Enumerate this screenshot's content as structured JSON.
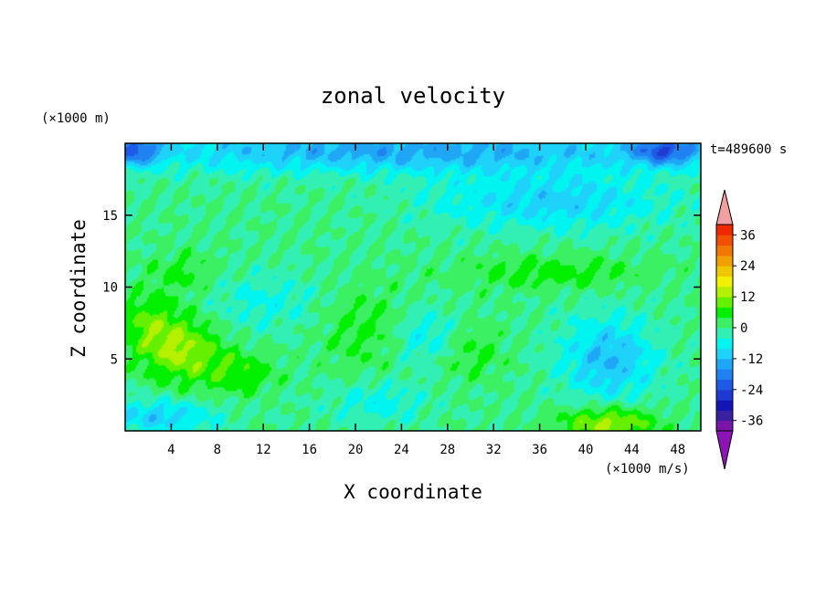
{
  "chart_data": {
    "type": "heatmap",
    "title": "zonal velocity",
    "xlabel": "X coordinate",
    "ylabel": "Z coordinate",
    "y_unit": "(×1000 m)",
    "x_unit": "(×1000 m/s)",
    "time_label": "t=489600 s",
    "xlim": [
      0,
      50
    ],
    "ylim": [
      0,
      20
    ],
    "x_ticks": [
      4,
      8,
      12,
      16,
      20,
      24,
      28,
      32,
      36,
      40,
      44,
      48
    ],
    "y_ticks": [
      5,
      10,
      15
    ],
    "colorbar": {
      "ticks": [
        36,
        24,
        12,
        0,
        -12,
        -24,
        -36
      ],
      "levels": [
        -40,
        -36,
        -32,
        -28,
        -24,
        -20,
        -16,
        -12,
        -8,
        -4,
        0,
        4,
        8,
        12,
        16,
        20,
        24,
        28,
        32,
        36,
        40
      ],
      "colors": [
        "#7b14a8",
        "#3a1fa0",
        "#1414b4",
        "#1f3ad2",
        "#1f5ae6",
        "#1f82f0",
        "#1fa6f5",
        "#1fd2fa",
        "#00f5f0",
        "#32f0b4",
        "#3cf064",
        "#00f000",
        "#64f000",
        "#b4f000",
        "#f0f000",
        "#f0c800",
        "#f0a000",
        "#f07800",
        "#f05000",
        "#f02800"
      ],
      "under_color": "#8c14b4",
      "over_color": "#f0a0a0"
    },
    "features": [
      {
        "x": 5,
        "z": 5.5,
        "sx": 3.5,
        "sz": 2.2,
        "value": 12
      },
      {
        "x": 2,
        "z": 7.5,
        "sx": 3,
        "sz": 2,
        "value": 8
      },
      {
        "x": 10,
        "z": 4,
        "sx": 3,
        "sz": 1.5,
        "value": 7
      },
      {
        "x": 42,
        "z": 5,
        "sx": 4,
        "sz": 3,
        "value": -12
      },
      {
        "x": 42,
        "z": 0.5,
        "sx": 4,
        "sz": 1.2,
        "value": 14
      },
      {
        "x": 26,
        "z": 6.5,
        "sx": 3,
        "sz": 2,
        "value": -7
      },
      {
        "x": 30,
        "z": 5.5,
        "sx": 3,
        "sz": 2,
        "value": 5
      },
      {
        "x": 21,
        "z": 7,
        "sx": 4,
        "sz": 3,
        "value": 5
      },
      {
        "x": 12,
        "z": 9,
        "sx": 5,
        "sz": 2,
        "value": -5
      },
      {
        "x": 3,
        "z": 1,
        "sx": 5,
        "sz": 1.2,
        "value": -10
      },
      {
        "x": 22,
        "z": 2,
        "sx": 4,
        "sz": 1.5,
        "value": -6
      },
      {
        "x": 37,
        "z": 11,
        "sx": 8,
        "sz": 1.2,
        "value": 6
      },
      {
        "x": 5,
        "z": 11,
        "sx": 3,
        "sz": 1.5,
        "value": 5
      },
      {
        "x": 24,
        "z": 19.5,
        "sx": 25,
        "sz": 1.5,
        "value": -14
      },
      {
        "x": 47,
        "z": 19.5,
        "sx": 3,
        "sz": 1,
        "value": -18
      },
      {
        "x": 1,
        "z": 19.5,
        "sx": 2,
        "sz": 1,
        "value": -17
      },
      {
        "x": 37,
        "z": 16,
        "sx": 10,
        "sz": 2,
        "value": -10
      }
    ]
  }
}
